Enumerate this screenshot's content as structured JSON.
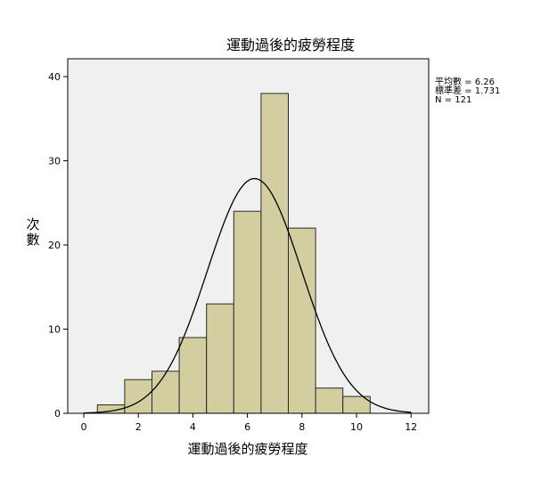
{
  "chart_data": {
    "type": "bar",
    "title": "運動過後的疲勞程度",
    "xlabel": "運動過後的疲勞程度",
    "ylabel": "次數",
    "xlim": [
      -0.5,
      12.5
    ],
    "ylim": [
      0,
      42
    ],
    "xticks": [
      0,
      2,
      4,
      6,
      8,
      10,
      12
    ],
    "yticks": [
      0,
      10,
      20,
      30,
      40
    ],
    "bins": [
      {
        "from": 0.5,
        "to": 1.5,
        "count": 1
      },
      {
        "from": 1.5,
        "to": 2.5,
        "count": 4
      },
      {
        "from": 2.5,
        "to": 3.5,
        "count": 5
      },
      {
        "from": 3.5,
        "to": 4.5,
        "count": 9
      },
      {
        "from": 4.5,
        "to": 5.5,
        "count": 13
      },
      {
        "from": 5.5,
        "to": 6.5,
        "count": 24
      },
      {
        "from": 6.5,
        "to": 7.5,
        "count": 38
      },
      {
        "from": 7.5,
        "to": 8.5,
        "count": 22
      },
      {
        "from": 8.5,
        "to": 9.5,
        "count": 3
      },
      {
        "from": 9.5,
        "to": 10.5,
        "count": 2
      }
    ],
    "normal_curve": {
      "mean": 6.26,
      "sd": 1.731,
      "n": 121,
      "bin_width": 1
    },
    "stats_lines": [
      "平均數 = 6.26",
      "標準差 = 1.731",
      "N = 121"
    ],
    "colors": {
      "bar_fill": "#d3cea0",
      "bar_stroke": "#2a2a2a",
      "plot_bg": "#f0f0f0",
      "curve": "#000000"
    }
  }
}
